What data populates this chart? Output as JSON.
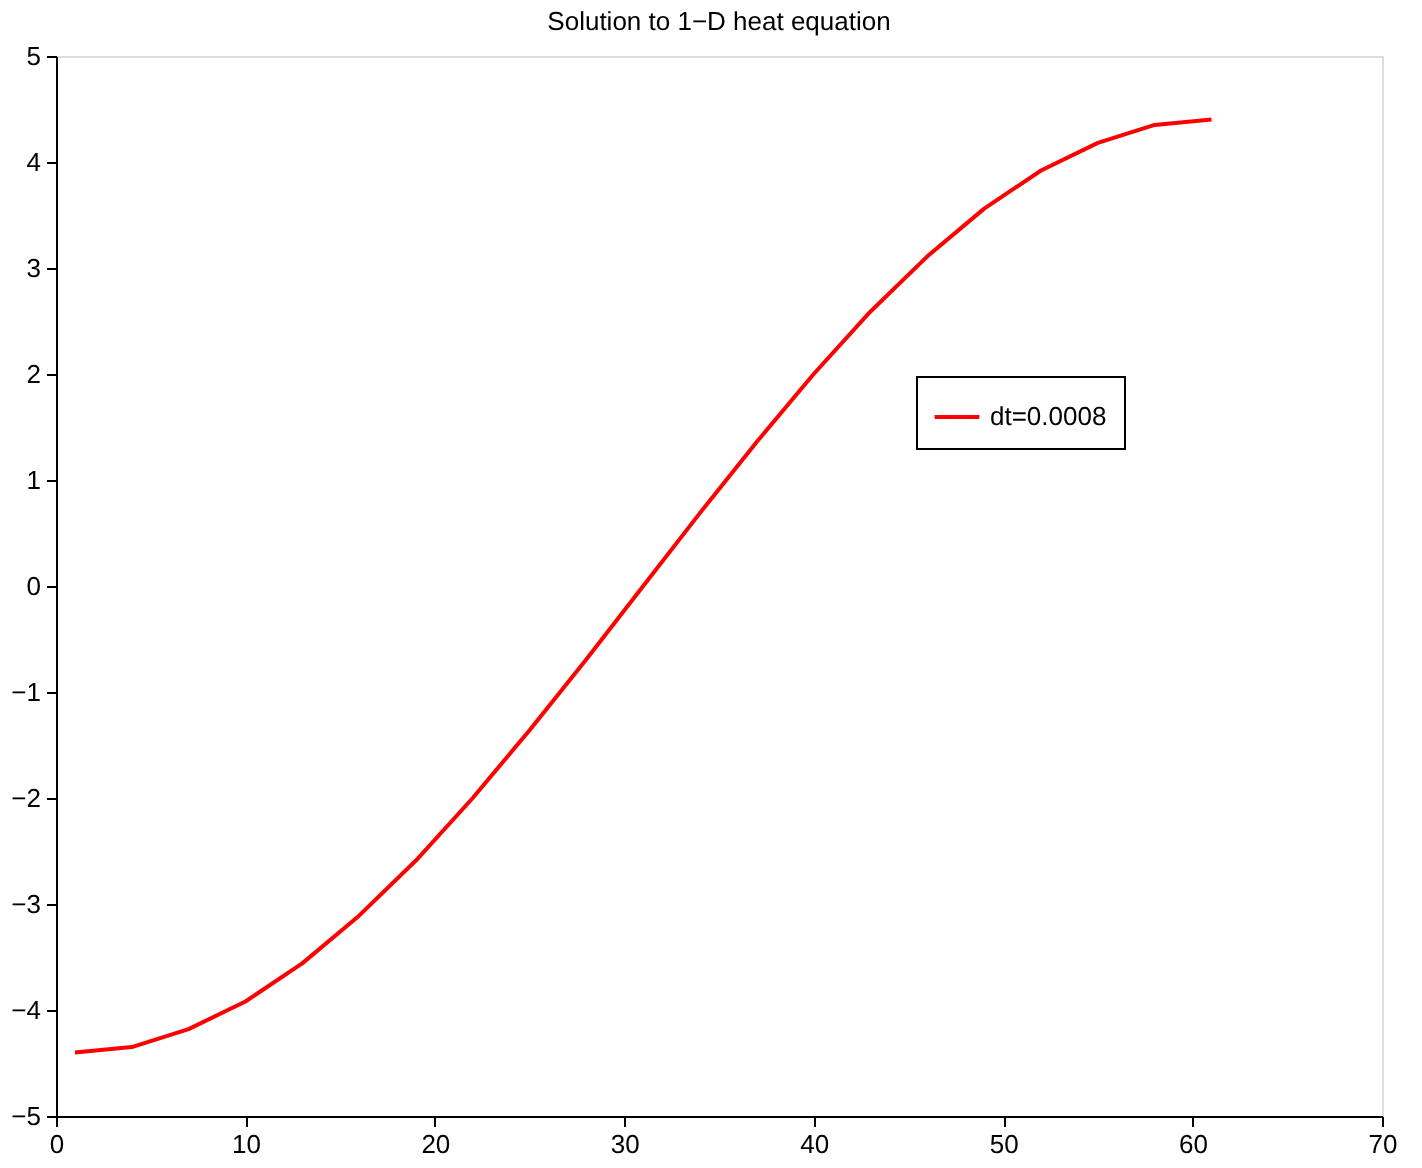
{
  "chart_data": {
    "type": "line",
    "title": "Solution to 1−D heat equation",
    "x": [
      1,
      4,
      7,
      10,
      13,
      16,
      19,
      22,
      25,
      28,
      31,
      34,
      37,
      40,
      43,
      46,
      49,
      52,
      55,
      58,
      61
    ],
    "series": [
      {
        "name": "dt=0.0008",
        "color": "#ff0000",
        "values": [
          -4.4,
          -4.35,
          -4.18,
          -3.92,
          -3.56,
          -3.11,
          -2.59,
          -2.0,
          -1.36,
          -0.69,
          0.0,
          0.69,
          1.36,
          2.0,
          2.59,
          3.11,
          3.56,
          3.92,
          4.18,
          4.35,
          4.4
        ]
      }
    ],
    "xlim": [
      0,
      70
    ],
    "xticks": [
      0,
      10,
      20,
      30,
      40,
      50,
      60,
      70
    ],
    "ylim": [
      -5,
      5
    ],
    "yticks": [
      -5,
      -4,
      -3,
      -2,
      -1,
      0,
      1,
      2,
      3,
      4,
      5
    ],
    "grid": false,
    "legend": "right",
    "marker": "none",
    "line_style": "solid"
  }
}
